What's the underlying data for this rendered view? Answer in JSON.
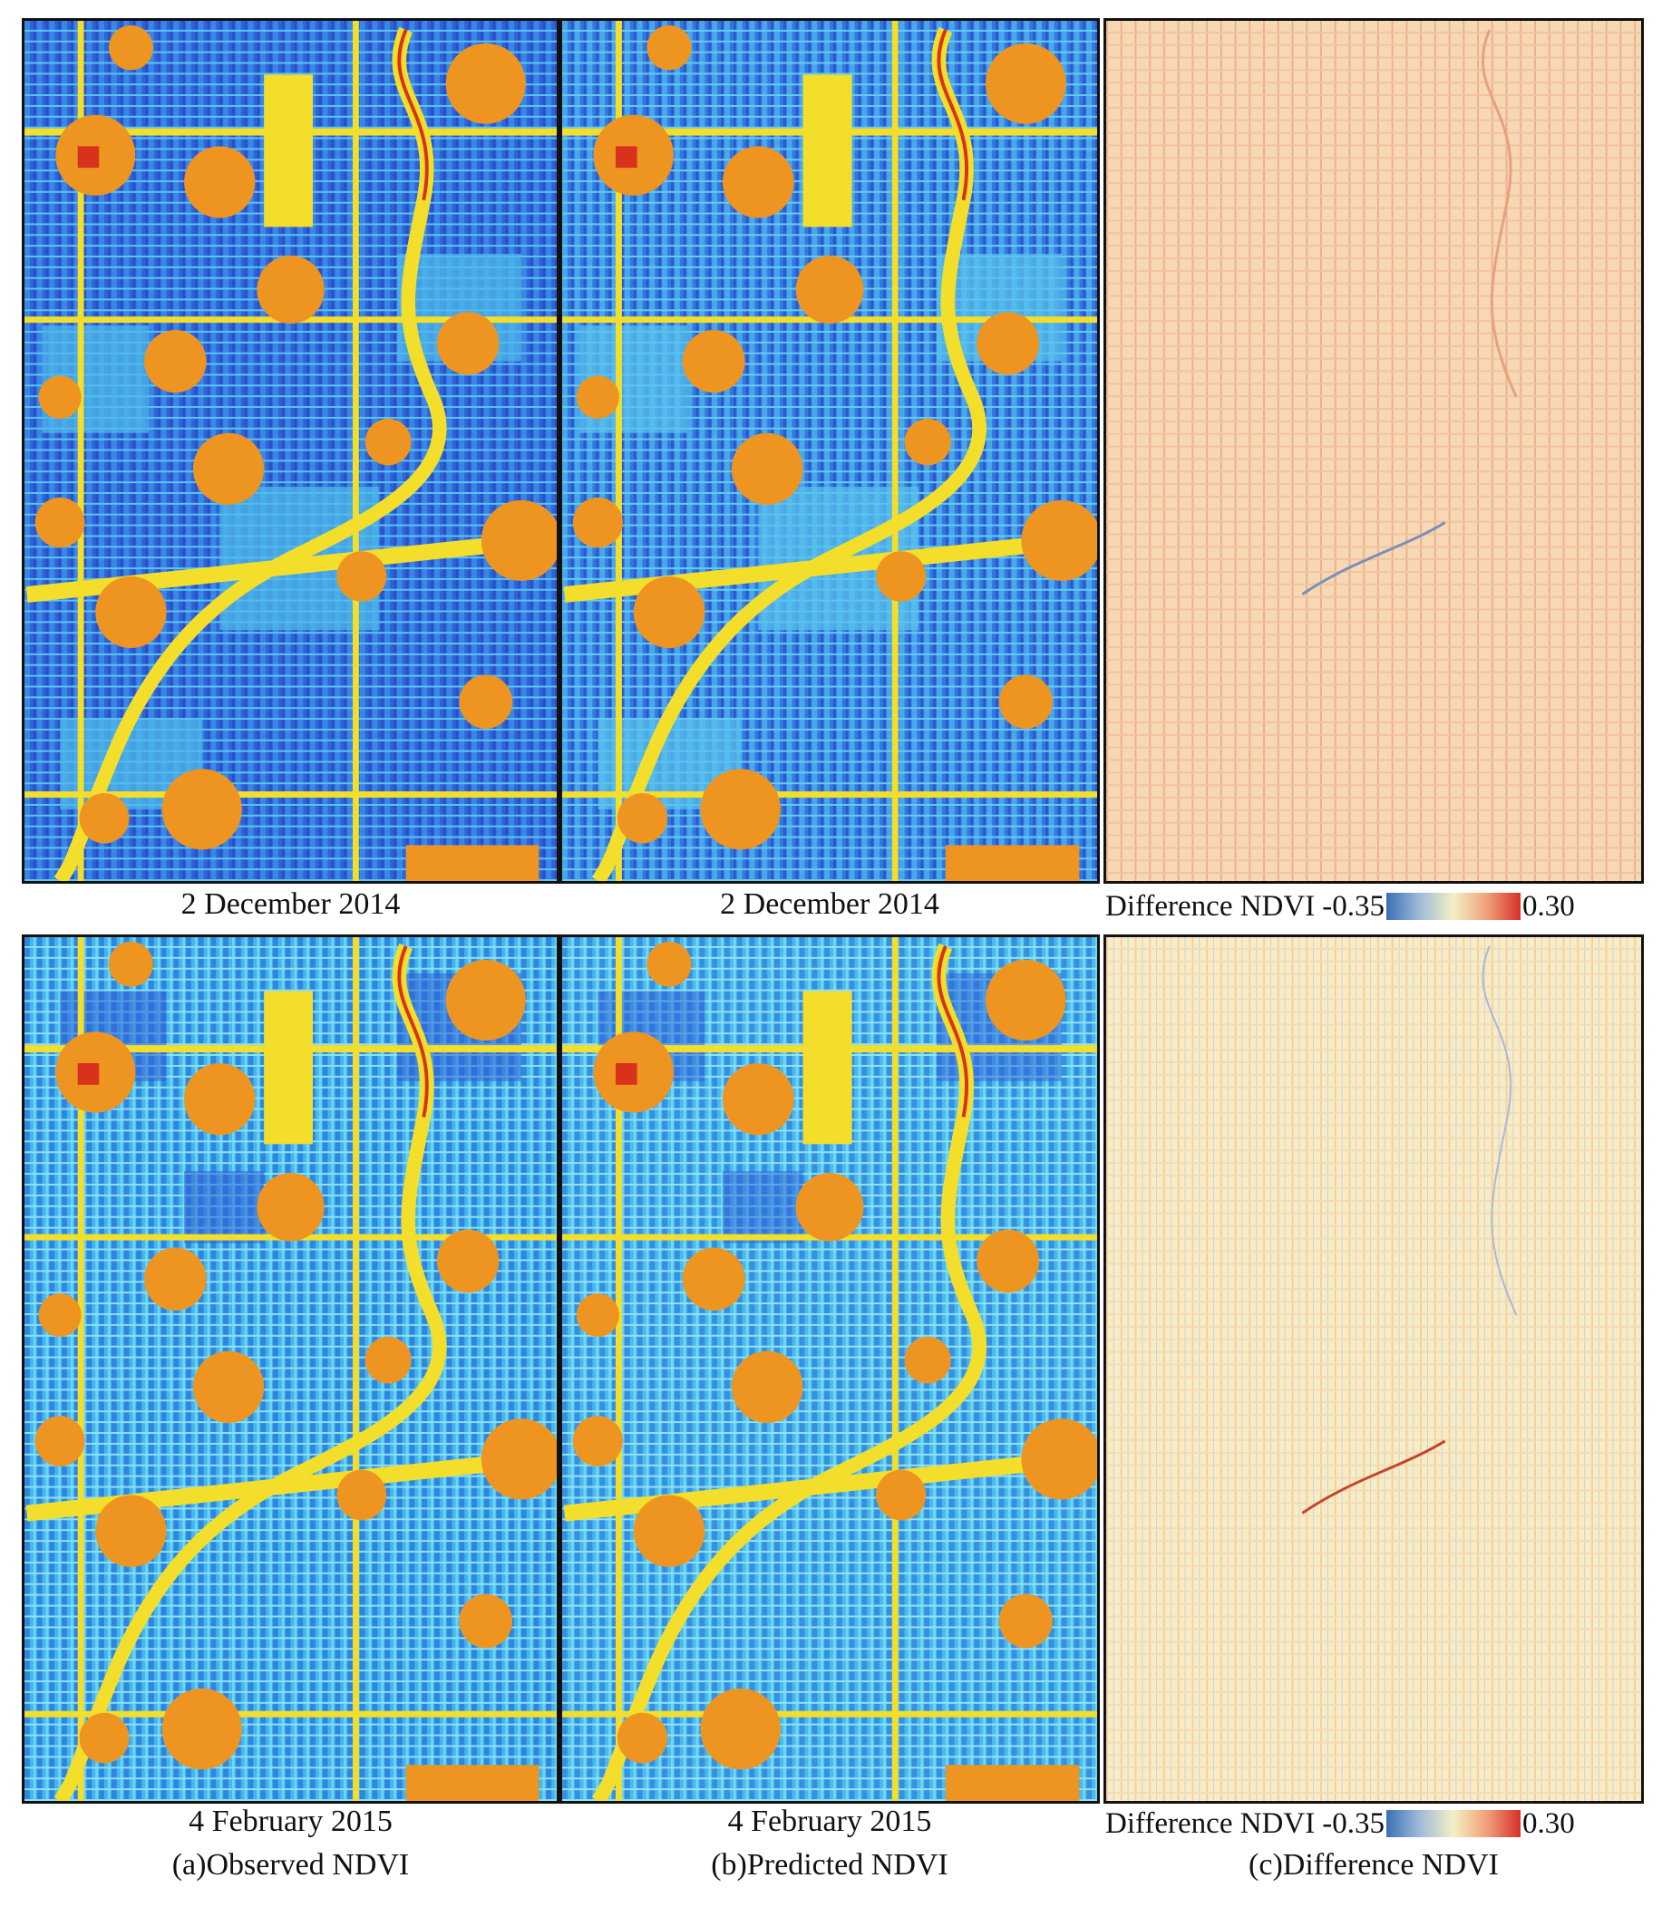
{
  "rows": [
    {
      "observed_caption": "2 December 2014",
      "predicted_caption": "2 December 2014",
      "legend": {
        "label": "Difference NDVI",
        "min": "-0.35",
        "max": "0.30"
      }
    },
    {
      "observed_caption": "4 February 2015",
      "predicted_caption": "4 February 2015",
      "legend": {
        "label": "Difference NDVI",
        "min": "-0.35",
        "max": "0.30"
      }
    }
  ],
  "column_captions": [
    "(a)Observed NDVI",
    "(b)Predicted NDVI",
    "(c)Difference NDVI"
  ],
  "colors": {
    "ndvi_low": "#2f5fd6",
    "ndvi_mid": "#40b4ec",
    "ndvi_high_yellow": "#f6e22a",
    "ndvi_high_orange": "#ee9420",
    "ndvi_peak_red": "#d8321c",
    "diff_low": "#3b6fb6",
    "diff_zero": "#f4f0c4",
    "diff_high": "#d6312a"
  }
}
